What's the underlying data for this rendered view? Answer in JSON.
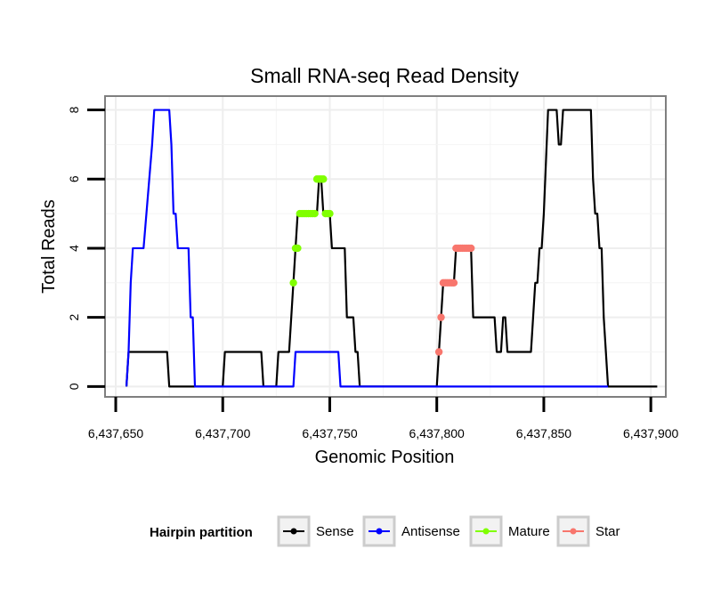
{
  "chart_data": {
    "type": "line",
    "title": "Small RNA-seq Read Density",
    "xlabel": "Genomic Position",
    "ylabel": "Total Reads",
    "xlim": [
      6437645,
      6437907
    ],
    "ylim": [
      -0.3,
      8.4
    ],
    "xticks": [
      6437650,
      6437700,
      6437750,
      6437800,
      6437850,
      6437900
    ],
    "xtick_labels": [
      "6,437,650",
      "6,437,700",
      "6,437,750",
      "6,437,800",
      "6,437,850",
      "6,437,900"
    ],
    "yticks": [
      0,
      2,
      4,
      6,
      8
    ],
    "ytick_labels": [
      "0",
      "2",
      "4",
      "6",
      "8"
    ],
    "grid": true,
    "legend_position": "bottom",
    "legend_title": "Hairpin partition",
    "series": [
      {
        "name": "Sense",
        "kind": "line",
        "color": "#000000",
        "points": [
          [
            6437655,
            0
          ],
          [
            6437656,
            1
          ],
          [
            6437674,
            1
          ],
          [
            6437675,
            0
          ],
          [
            6437700,
            0
          ],
          [
            6437701,
            1
          ],
          [
            6437718,
            1
          ],
          [
            6437719,
            0
          ],
          [
            6437725,
            0
          ],
          [
            6437726,
            1
          ],
          [
            6437731,
            1
          ],
          [
            6437732,
            2
          ],
          [
            6437734,
            4
          ],
          [
            6437735,
            5
          ],
          [
            6437744,
            5
          ],
          [
            6437745,
            6
          ],
          [
            6437746,
            6
          ],
          [
            6437747,
            5
          ],
          [
            6437749,
            5
          ],
          [
            6437750,
            5
          ],
          [
            6437751,
            4
          ],
          [
            6437757,
            4
          ],
          [
            6437758,
            2
          ],
          [
            6437761,
            2
          ],
          [
            6437762,
            1
          ],
          [
            6437763,
            1
          ],
          [
            6437764,
            0
          ],
          [
            6437800,
            0
          ],
          [
            6437801,
            1
          ],
          [
            6437802,
            2
          ],
          [
            6437803,
            3
          ],
          [
            6437808,
            3
          ],
          [
            6437809,
            4
          ],
          [
            6437816,
            4
          ],
          [
            6437817,
            2
          ],
          [
            6437827,
            2
          ],
          [
            6437828,
            1
          ],
          [
            6437830,
            1
          ],
          [
            6437831,
            2
          ],
          [
            6437832,
            2
          ],
          [
            6437833,
            1
          ],
          [
            6437844,
            1
          ],
          [
            6437845,
            2
          ],
          [
            6437846,
            3
          ],
          [
            6437847,
            3
          ],
          [
            6437848,
            4
          ],
          [
            6437849,
            4
          ],
          [
            6437850,
            5
          ],
          [
            6437852,
            8
          ],
          [
            6437856,
            8
          ],
          [
            6437857,
            7
          ],
          [
            6437858,
            7
          ],
          [
            6437859,
            8
          ],
          [
            6437872,
            8
          ],
          [
            6437873,
            6
          ],
          [
            6437874,
            5
          ],
          [
            6437875,
            5
          ],
          [
            6437876,
            4
          ],
          [
            6437877,
            4
          ],
          [
            6437878,
            2
          ],
          [
            6437879,
            1
          ],
          [
            6437880,
            0
          ],
          [
            6437903,
            0
          ]
        ]
      },
      {
        "name": "Antisense",
        "kind": "line",
        "color": "#0000ff",
        "points": [
          [
            6437655,
            0
          ],
          [
            6437656,
            1
          ],
          [
            6437657,
            3
          ],
          [
            6437658,
            4
          ],
          [
            6437663,
            4
          ],
          [
            6437667,
            7
          ],
          [
            6437668,
            8
          ],
          [
            6437675,
            8
          ],
          [
            6437676,
            7
          ],
          [
            6437677,
            5
          ],
          [
            6437678,
            5
          ],
          [
            6437679,
            4
          ],
          [
            6437684,
            4
          ],
          [
            6437685,
            2
          ],
          [
            6437686,
            2
          ],
          [
            6437687,
            0
          ],
          [
            6437733,
            0
          ],
          [
            6437734,
            1
          ],
          [
            6437754,
            1
          ],
          [
            6437755,
            0
          ],
          [
            6437880,
            0
          ]
        ]
      },
      {
        "name": "Mature",
        "kind": "points",
        "color": "#80ff00",
        "points": [
          [
            6437733,
            3
          ],
          [
            6437734,
            4
          ],
          [
            6437735,
            4
          ],
          [
            6437736,
            5
          ],
          [
            6437737,
            5
          ],
          [
            6437738,
            5
          ],
          [
            6437739,
            5
          ],
          [
            6437740,
            5
          ],
          [
            6437741,
            5
          ],
          [
            6437742,
            5
          ],
          [
            6437743,
            5
          ],
          [
            6437744,
            6
          ],
          [
            6437745,
            6
          ],
          [
            6437746,
            6
          ],
          [
            6437747,
            6
          ],
          [
            6437748,
            5
          ],
          [
            6437749,
            5
          ],
          [
            6437750,
            5
          ]
        ]
      },
      {
        "name": "Star",
        "kind": "points",
        "color": "#f8766d",
        "points": [
          [
            6437801,
            1
          ],
          [
            6437802,
            2
          ],
          [
            6437803,
            3
          ],
          [
            6437804,
            3
          ],
          [
            6437805,
            3
          ],
          [
            6437806,
            3
          ],
          [
            6437807,
            3
          ],
          [
            6437808,
            3
          ],
          [
            6437809,
            4
          ],
          [
            6437810,
            4
          ],
          [
            6437811,
            4
          ],
          [
            6437812,
            4
          ],
          [
            6437813,
            4
          ],
          [
            6437814,
            4
          ],
          [
            6437815,
            4
          ],
          [
            6437816,
            4
          ]
        ]
      }
    ]
  }
}
